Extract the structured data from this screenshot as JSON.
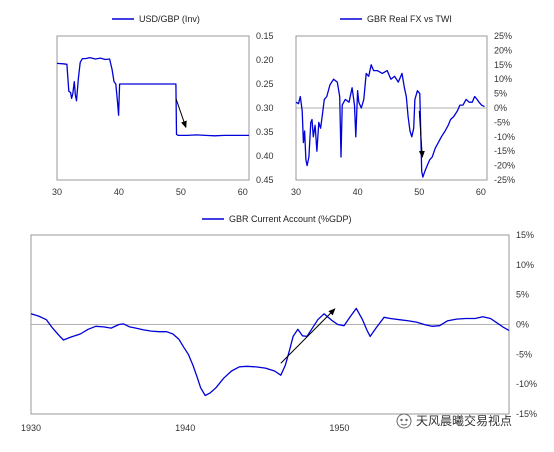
{
  "chart_data": [
    {
      "type": "line",
      "title": "",
      "xlabel": "",
      "ylabel": "",
      "legend": "top-center",
      "grid": false,
      "x_ticks": [
        "30",
        "40",
        "50",
        "60"
      ],
      "xlim": [
        30,
        61
      ],
      "y_ticks": [
        "0.15",
        "0.20",
        "0.25",
        "0.30",
        "0.35",
        "0.40",
        "0.45"
      ],
      "ylim": [
        0.15,
        0.45
      ],
      "y_inverted": true,
      "y_axis_side": "right",
      "series": [
        {
          "name": "USD/GBP (Inv)",
          "color": "#0000d8",
          "points": [
            [
              30.0,
              0.207
            ],
            [
              31.0,
              0.208
            ],
            [
              31.6,
              0.209
            ],
            [
              31.9,
              0.265
            ],
            [
              32.2,
              0.268
            ],
            [
              32.35,
              0.28
            ],
            [
              32.55,
              0.27
            ],
            [
              32.8,
              0.245
            ],
            [
              32.95,
              0.272
            ],
            [
              33.15,
              0.285
            ],
            [
              33.45,
              0.238
            ],
            [
              33.75,
              0.205
            ],
            [
              34.1,
              0.197
            ],
            [
              34.6,
              0.197
            ],
            [
              35.3,
              0.195
            ],
            [
              36.2,
              0.198
            ],
            [
              37.0,
              0.196
            ],
            [
              37.8,
              0.199
            ],
            [
              38.5,
              0.198
            ],
            [
              38.9,
              0.22
            ],
            [
              39.2,
              0.245
            ],
            [
              39.5,
              0.25
            ],
            [
              39.75,
              0.285
            ],
            [
              39.95,
              0.315
            ],
            [
              40.1,
              0.25
            ],
            [
              41.5,
              0.25
            ],
            [
              43.0,
              0.25
            ],
            [
              45.0,
              0.25
            ],
            [
              47.0,
              0.25
            ],
            [
              48.9,
              0.25
            ],
            [
              49.2,
              0.25
            ],
            [
              49.3,
              0.355
            ],
            [
              49.6,
              0.357
            ],
            [
              51.0,
              0.357
            ],
            [
              52.5,
              0.356
            ],
            [
              54.0,
              0.357
            ],
            [
              55.5,
              0.358
            ],
            [
              57.0,
              0.357
            ],
            [
              58.5,
              0.357
            ],
            [
              60.0,
              0.357
            ],
            [
              61.0,
              0.357
            ]
          ]
        }
      ],
      "annotations": [
        {
          "type": "arrow",
          "from": [
            49.2,
            0.28
          ],
          "to": [
            50.8,
            0.34
          ]
        }
      ]
    },
    {
      "type": "line",
      "title": "",
      "xlabel": "",
      "ylabel": "",
      "legend": "top-center",
      "grid": false,
      "x_ticks": [
        "30",
        "40",
        "50",
        "60"
      ],
      "xlim": [
        30,
        61
      ],
      "y_ticks": [
        "25%",
        "20%",
        "15%",
        "10%",
        "5%",
        "0%",
        "-5%",
        "-10%",
        "-15%",
        "-20%",
        "-25%"
      ],
      "ylim": [
        -25,
        25
      ],
      "y_axis_side": "right",
      "series": [
        {
          "name": "GBR Real FX vs TWI",
          "color": "#0000d8",
          "points": [
            [
              30.0,
              2
            ],
            [
              30.4,
              1.5
            ],
            [
              30.7,
              4
            ],
            [
              31.0,
              -1
            ],
            [
              31.2,
              -12
            ],
            [
              31.4,
              -8
            ],
            [
              31.6,
              -18
            ],
            [
              31.8,
              -20
            ],
            [
              32.1,
              -17
            ],
            [
              32.4,
              -5
            ],
            [
              32.6,
              -4
            ],
            [
              32.8,
              -10
            ],
            [
              33.1,
              -6
            ],
            [
              33.4,
              -15
            ],
            [
              33.7,
              -5
            ],
            [
              34.0,
              -7
            ],
            [
              34.3,
              -2
            ],
            [
              34.6,
              3
            ],
            [
              35.0,
              4
            ],
            [
              35.5,
              8
            ],
            [
              36.1,
              10
            ],
            [
              36.7,
              9
            ],
            [
              37.1,
              4
            ],
            [
              37.3,
              -17
            ],
            [
              37.5,
              1
            ],
            [
              38.0,
              3
            ],
            [
              38.6,
              2
            ],
            [
              39.1,
              7
            ],
            [
              39.5,
              1
            ],
            [
              39.7,
              -10
            ],
            [
              40.0,
              6
            ],
            [
              40.2,
              2
            ],
            [
              40.6,
              0
            ],
            [
              41.0,
              3
            ],
            [
              41.4,
              12
            ],
            [
              41.8,
              11
            ],
            [
              42.2,
              15
            ],
            [
              42.6,
              13
            ],
            [
              43.2,
              13
            ],
            [
              44.0,
              12
            ],
            [
              44.8,
              13
            ],
            [
              45.4,
              10
            ],
            [
              46.0,
              11
            ],
            [
              46.6,
              9
            ],
            [
              47.2,
              12
            ],
            [
              47.6,
              7
            ],
            [
              47.9,
              4
            ],
            [
              48.2,
              -3
            ],
            [
              48.5,
              -8
            ],
            [
              48.8,
              -10
            ],
            [
              49.1,
              -7
            ],
            [
              49.3,
              3
            ],
            [
              49.7,
              6
            ],
            [
              50.1,
              5
            ],
            [
              50.4,
              -22
            ],
            [
              50.6,
              -24
            ],
            [
              50.9,
              -22
            ],
            [
              51.3,
              -20
            ],
            [
              51.7,
              -18
            ],
            [
              52.1,
              -17
            ],
            [
              52.6,
              -14
            ],
            [
              53.1,
              -12
            ],
            [
              53.6,
              -10
            ],
            [
              54.2,
              -8
            ],
            [
              54.7,
              -6
            ],
            [
              55.1,
              -4
            ],
            [
              55.6,
              -3
            ],
            [
              56.2,
              -1
            ],
            [
              56.6,
              1
            ],
            [
              57.1,
              1
            ],
            [
              57.6,
              3
            ],
            [
              58.1,
              2
            ],
            [
              58.6,
              2
            ],
            [
              59.0,
              4
            ],
            [
              59.4,
              3
            ],
            [
              59.7,
              2
            ],
            [
              60.1,
              1
            ],
            [
              60.6,
              0.5
            ]
          ]
        }
      ],
      "annotations": [
        {
          "type": "arrow",
          "from": [
            50.0,
            -1
          ],
          "to": [
            50.5,
            -17
          ]
        }
      ]
    },
    {
      "type": "line",
      "title": "",
      "xlabel": "",
      "ylabel": "",
      "legend": "top-center",
      "grid": false,
      "x_ticks": [
        "1930",
        "1940",
        "1950"
      ],
      "xlim": [
        1930,
        1961
      ],
      "y_ticks": [
        "15%",
        "10%",
        "5%",
        "0%",
        "-5%",
        "-10%",
        "-15%"
      ],
      "ylim": [
        -15,
        15
      ],
      "y_axis_side": "right",
      "series": [
        {
          "name": "GBR Current Account (%GDP)",
          "color": "#0000d8",
          "points": [
            [
              1930.0,
              1.8
            ],
            [
              1930.5,
              1.4
            ],
            [
              1931.0,
              0.8
            ],
            [
              1931.4,
              -0.6
            ],
            [
              1931.8,
              -1.8
            ],
            [
              1932.1,
              -2.6
            ],
            [
              1932.6,
              -2.1
            ],
            [
              1933.2,
              -1.6
            ],
            [
              1933.7,
              -0.8
            ],
            [
              1934.2,
              -0.3
            ],
            [
              1934.7,
              -0.4
            ],
            [
              1935.2,
              -0.6
            ],
            [
              1935.7,
              0.0
            ],
            [
              1936.0,
              0.1
            ],
            [
              1936.4,
              -0.4
            ],
            [
              1936.8,
              -0.6
            ],
            [
              1937.3,
              -0.9
            ],
            [
              1937.8,
              -1.1
            ],
            [
              1938.3,
              -1.2
            ],
            [
              1938.8,
              -1.2
            ],
            [
              1939.2,
              -1.6
            ],
            [
              1939.6,
              -2.5
            ],
            [
              1939.9,
              -3.8
            ],
            [
              1940.2,
              -5.0
            ],
            [
              1940.5,
              -6.8
            ],
            [
              1940.8,
              -9.0
            ],
            [
              1941.0,
              -10.6
            ],
            [
              1941.3,
              -11.9
            ],
            [
              1941.6,
              -11.5
            ],
            [
              1942.0,
              -10.6
            ],
            [
              1942.5,
              -9.0
            ],
            [
              1943.0,
              -7.8
            ],
            [
              1943.5,
              -7.1
            ],
            [
              1944.0,
              -7.0
            ],
            [
              1944.6,
              -7.1
            ],
            [
              1945.2,
              -7.3
            ],
            [
              1945.8,
              -7.8
            ],
            [
              1946.2,
              -8.5
            ],
            [
              1946.5,
              -6.8
            ],
            [
              1946.8,
              -4.0
            ],
            [
              1947.0,
              -2.0
            ],
            [
              1947.3,
              -0.8
            ],
            [
              1947.6,
              -1.9
            ],
            [
              1947.9,
              -2.0
            ],
            [
              1948.2,
              -0.8
            ],
            [
              1948.6,
              0.8
            ],
            [
              1949.0,
              1.8
            ],
            [
              1949.5,
              0.7
            ],
            [
              1949.9,
              0.0
            ],
            [
              1950.3,
              -0.2
            ],
            [
              1950.7,
              1.3
            ],
            [
              1951.1,
              2.7
            ],
            [
              1951.5,
              0.8
            ],
            [
              1951.8,
              -1.0
            ],
            [
              1952.0,
              -2.0
            ],
            [
              1952.4,
              -0.5
            ],
            [
              1952.9,
              1.2
            ],
            [
              1953.3,
              1.0
            ],
            [
              1953.9,
              0.8
            ],
            [
              1954.5,
              0.6
            ],
            [
              1955.0,
              0.4
            ],
            [
              1955.5,
              0.0
            ],
            [
              1956.0,
              -0.3
            ],
            [
              1956.5,
              -0.2
            ],
            [
              1957.0,
              0.6
            ],
            [
              1957.6,
              0.9
            ],
            [
              1958.2,
              1.0
            ],
            [
              1958.8,
              1.0
            ],
            [
              1959.3,
              1.3
            ],
            [
              1959.8,
              1.0
            ],
            [
              1960.2,
              0.3
            ],
            [
              1960.6,
              -0.4
            ],
            [
              1961.0,
              -1.0
            ]
          ]
        }
      ],
      "annotations": [
        {
          "type": "arrow",
          "from": [
            1946.2,
            -6.5
          ],
          "to": [
            1949.7,
            2.6
          ]
        }
      ]
    }
  ],
  "watermark": {
    "text": "天风晨曦交易视点",
    "icon": "wechat-icon"
  }
}
